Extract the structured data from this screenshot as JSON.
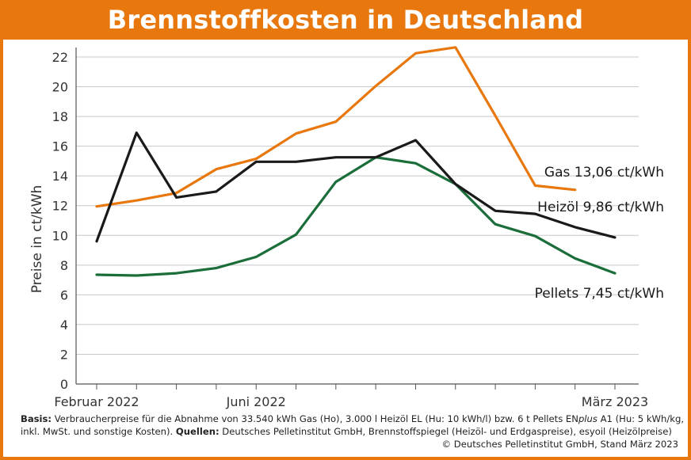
{
  "title": "Brennstoffkosten in Deutschland",
  "chart_data": {
    "type": "line",
    "ylabel": "Preise in ct/kWh",
    "ylim": [
      0,
      23
    ],
    "yticks": [
      0,
      2,
      4,
      6,
      8,
      10,
      12,
      14,
      16,
      18,
      20,
      22
    ],
    "grid": true,
    "x": [
      "2022-02",
      "2022-03",
      "2022-04",
      "2022-05",
      "2022-06",
      "2022-07",
      "2022-08",
      "2022-09",
      "2022-10",
      "2022-11",
      "2022-12",
      "2023-01",
      "2023-02",
      "2023-03"
    ],
    "x_tick_labels": [
      {
        "at": "2022-02",
        "label": "Februar 2022"
      },
      {
        "at": "2022-06",
        "label": "Juni 2022"
      },
      {
        "at": "2023-03",
        "label": "März 2023"
      }
    ],
    "series": [
      {
        "name": "Gas",
        "color": "#e8780e",
        "end_label": "13,06 ct/kWh",
        "values": [
          11.95,
          12.35,
          12.85,
          14.45,
          15.15,
          16.85,
          17.65,
          20.05,
          22.25,
          22.65,
          18.05,
          13.35,
          13.06,
          null
        ]
      },
      {
        "name": "Heizöl",
        "color": "#1a1a1a",
        "end_label": "9,86 ct/kWh",
        "values": [
          9.6,
          16.9,
          12.55,
          12.95,
          14.95,
          14.95,
          15.25,
          15.25,
          16.4,
          13.45,
          11.65,
          11.45,
          10.55,
          9.86
        ]
      },
      {
        "name": "Pellets",
        "color": "#1b6e3a",
        "end_label": "7,45 ct/kWh",
        "values": [
          7.35,
          7.3,
          7.45,
          7.8,
          8.55,
          10.05,
          13.6,
          15.25,
          14.85,
          13.45,
          10.75,
          9.95,
          8.45,
          7.45
        ]
      }
    ]
  },
  "footnote": {
    "basis_label": "Basis:",
    "basis_text_1": " Verbraucherpreise für die Abnahme von 33.540 kWh Gas (Ho), 3.000 l Heizöl EL (Hu: 10 kWh/l) bzw. 6 t Pellets EN",
    "basis_plus": "plus",
    "basis_text_2": " A1 (Hu: 5 kWh/kg,",
    "line2_text_1": "inkl. MwSt. und sonstige Kosten). ",
    "sources_label": "Quellen:",
    "sources_text": " Deutsches Pelletinstitut GmbH, Brennstoffspiegel (Heizöl- und Erdgaspreise), esyoil (Heizölpreise)",
    "copyright": "© Deutsches Pelletinstitut GmbH, Stand März 2023"
  }
}
